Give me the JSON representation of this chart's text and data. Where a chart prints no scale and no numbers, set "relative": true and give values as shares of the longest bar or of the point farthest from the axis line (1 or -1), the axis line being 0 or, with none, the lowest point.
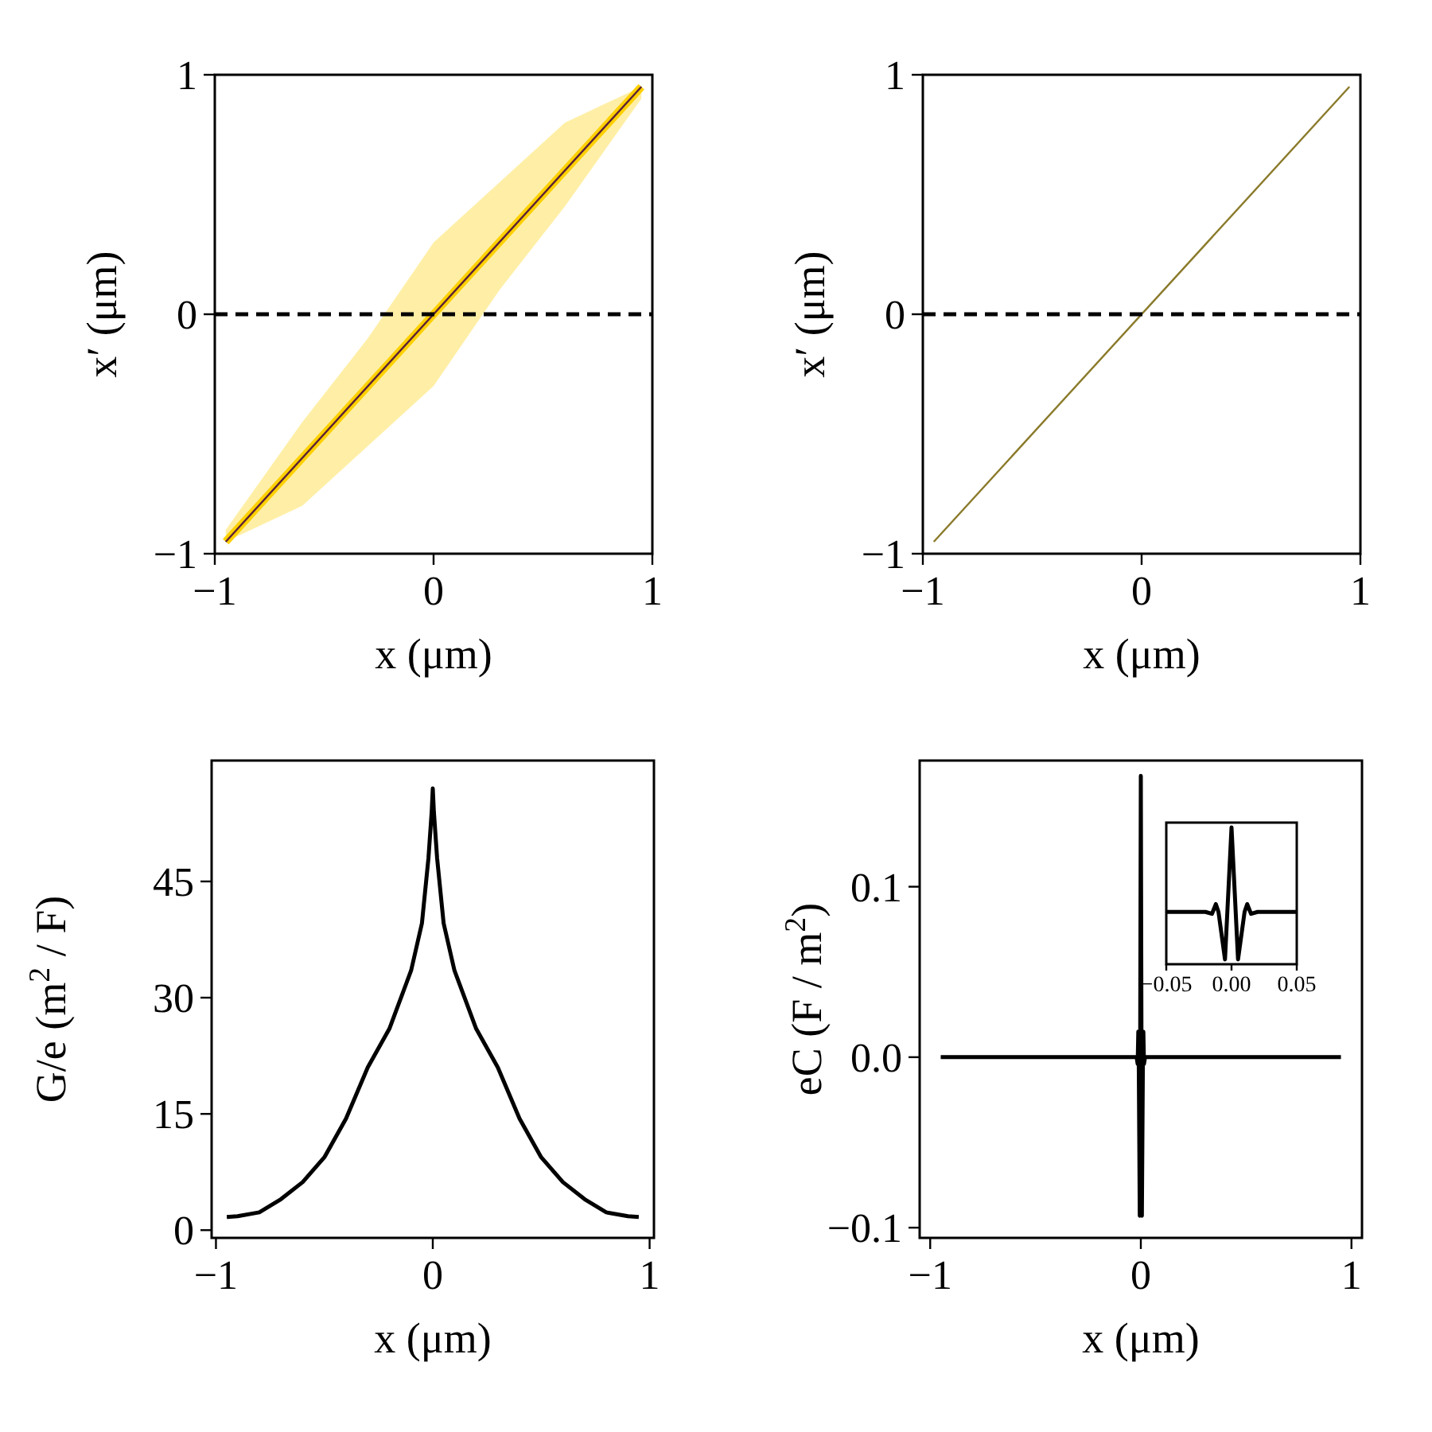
{
  "chart_data": [
    {
      "type": "line",
      "xlabel": "x (μm)",
      "ylabel": "x′ (μm)",
      "xlim": [
        -1,
        1
      ],
      "ylim": [
        -1,
        1
      ],
      "xticks": [
        {
          "value": -1,
          "label": "−1"
        },
        {
          "value": 0,
          "label": "0"
        },
        {
          "value": 1,
          "label": "1"
        }
      ],
      "yticks": [
        {
          "value": -1,
          "label": "−1"
        },
        {
          "value": 0,
          "label": "0"
        },
        {
          "value": 1,
          "label": "1"
        }
      ],
      "series": [
        {
          "color": "#ffd000",
          "x": [
            -0.95,
            -0.6,
            -0.3,
            0,
            0.3,
            0.6,
            0.95
          ],
          "values": [
            -0.95,
            -0.6,
            -0.3,
            0,
            0.3,
            0.6,
            0.95
          ],
          "lower": [
            -0.95,
            -0.8,
            -0.55,
            -0.3,
            0.1,
            0.45,
            0.9
          ],
          "upper": [
            -0.9,
            -0.45,
            -0.1,
            0.3,
            0.55,
            0.8,
            0.95
          ]
        },
        {
          "color": "#5a2038",
          "x": [
            -0.95,
            0.95
          ],
          "values": [
            -0.95,
            0.95
          ]
        }
      ],
      "ref_lines": [
        {
          "axis": "y",
          "value": 0,
          "color": "#000000",
          "line_style": "dashed"
        }
      ]
    },
    {
      "type": "line",
      "xlabel": "x (μm)",
      "ylabel": "x′ (μm)",
      "xlim": [
        -1,
        1
      ],
      "ylim": [
        -1,
        1
      ],
      "xticks": [
        {
          "value": -1,
          "label": "−1"
        },
        {
          "value": 0,
          "label": "0"
        },
        {
          "value": 1,
          "label": "1"
        }
      ],
      "yticks": [
        {
          "value": -1,
          "label": "−1"
        },
        {
          "value": 0,
          "label": "0"
        },
        {
          "value": 1,
          "label": "1"
        }
      ],
      "series": [
        {
          "color": "#8a7a2a",
          "x": [
            -0.95,
            0.95
          ],
          "values": [
            -0.95,
            0.95
          ]
        }
      ],
      "ref_lines": [
        {
          "axis": "y",
          "value": 0,
          "color": "#000000",
          "line_style": "dashed"
        }
      ]
    },
    {
      "type": "line",
      "xlabel": "x (μm)",
      "ylabel": "G/e (m$^{2}$ / F)",
      "xlim": [
        -1.02,
        1.02
      ],
      "ylim": [
        -1,
        60.6
      ],
      "xticks": [
        {
          "value": -1,
          "label": "−1"
        },
        {
          "value": 0,
          "label": "0"
        },
        {
          "value": 1,
          "label": "1"
        }
      ],
      "yticks": [
        {
          "value": 0,
          "label": "0"
        },
        {
          "value": 15,
          "label": "15"
        },
        {
          "value": 30,
          "label": "30"
        },
        {
          "value": 45,
          "label": "45"
        }
      ],
      "series": [
        {
          "color": "#000000",
          "x": [
            -0.95,
            -0.9,
            -0.8,
            -0.7,
            -0.6,
            -0.5,
            -0.4,
            -0.3,
            -0.2,
            -0.1,
            -0.05,
            -0.02,
            -0.005,
            0,
            0.005,
            0.02,
            0.05,
            0.1,
            0.2,
            0.3,
            0.4,
            0.5,
            0.6,
            0.7,
            0.8,
            0.9,
            0.95
          ],
          "values": [
            1.7,
            1.8,
            2.3,
            4,
            6.2,
            9.4,
            14.4,
            21,
            26,
            33.5,
            39.6,
            48,
            54,
            57,
            54,
            48,
            39.6,
            33.5,
            26,
            21,
            14.4,
            9.4,
            6.2,
            4,
            2.3,
            1.8,
            1.7
          ]
        }
      ]
    },
    {
      "type": "line",
      "xlabel": "x (μm)",
      "ylabel": "eC (F / m$^{2}$)",
      "xlim": [
        -1.05,
        1.05
      ],
      "ylim": [
        -0.106,
        0.174
      ],
      "xticks": [
        {
          "value": -1,
          "label": "−1"
        },
        {
          "value": 0,
          "label": "0"
        },
        {
          "value": 1,
          "label": "1"
        }
      ],
      "yticks": [
        {
          "value": -0.1,
          "label": "−0.1"
        },
        {
          "value": 0,
          "label": "0.0"
        },
        {
          "value": 0.1,
          "label": "0.1"
        }
      ],
      "series": [
        {
          "color": "#000000",
          "x": [
            -0.95,
            -0.02,
            -0.015,
            -0.012,
            -0.01,
            -0.005,
            0,
            0.005,
            0.01,
            0.012,
            0.015,
            0.02,
            0.95
          ],
          "values": [
            0,
            0,
            -0.004,
            0.015,
            0,
            -0.093,
            0.165,
            -0.093,
            0,
            0.015,
            -0.004,
            0,
            0
          ]
        }
      ]
    },
    {
      "type": "line",
      "tick_labels": "x",
      "relative": true,
      "xlim": [
        -0.05,
        0.05
      ],
      "xticks": [
        {
          "value": -0.05,
          "label": "−0.05"
        },
        {
          "value": 0,
          "label": "0.00"
        },
        {
          "value": 0.05,
          "label": "0.05"
        }
      ],
      "series": [
        {
          "color": "#000000",
          "x": [
            -0.05,
            -0.02,
            -0.015,
            -0.012,
            -0.01,
            -0.005,
            0,
            0.005,
            0.01,
            0.012,
            0.015,
            0.02,
            0.05
          ],
          "values": [
            0.36,
            0.36,
            0.345,
            0.419,
            0.36,
            0,
            1,
            0,
            0.36,
            0.419,
            0.345,
            0.36,
            0.36
          ]
        }
      ]
    }
  ]
}
